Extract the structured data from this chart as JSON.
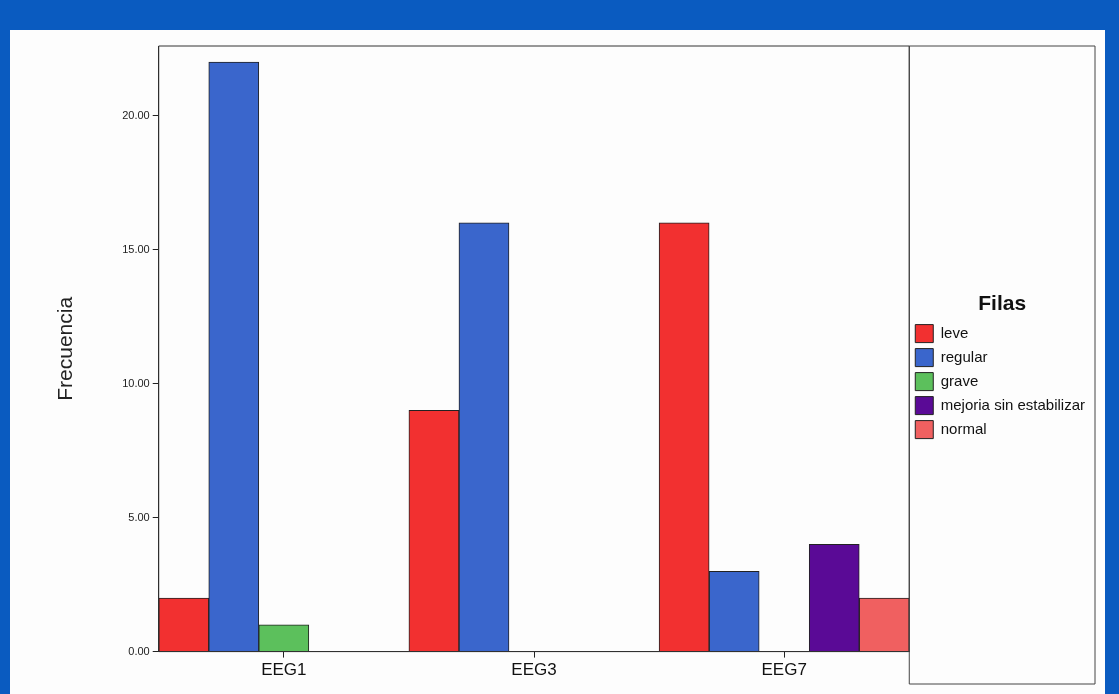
{
  "chart_data": {
    "type": "bar",
    "ylabel": "Frecuencia",
    "legend_title": "Filas",
    "categories": [
      "EEG1",
      "EEG3",
      "EEG7"
    ],
    "series": [
      {
        "name": "leve",
        "color": "#f23030",
        "values": [
          2,
          9,
          16
        ]
      },
      {
        "name": "regular",
        "color": "#3a66cc",
        "values": [
          22,
          16,
          3
        ]
      },
      {
        "name": "grave",
        "color": "#5cc05c",
        "values": [
          1,
          null,
          null
        ]
      },
      {
        "name": "mejoria sin estabilizar",
        "color": "#5a0a96",
        "values": [
          null,
          null,
          4
        ]
      },
      {
        "name": "normal",
        "color": "#f06060",
        "values": [
          null,
          null,
          2
        ]
      }
    ],
    "ylim": [
      0,
      22.6
    ],
    "yticks": [
      {
        "value": 0,
        "label": "0.00"
      },
      {
        "value": 5,
        "label": "5.00"
      },
      {
        "value": 10,
        "label": "10.00"
      },
      {
        "value": 15,
        "label": "15.00"
      },
      {
        "value": 20,
        "label": "20.00"
      }
    ],
    "grid": false,
    "legend": "right"
  }
}
